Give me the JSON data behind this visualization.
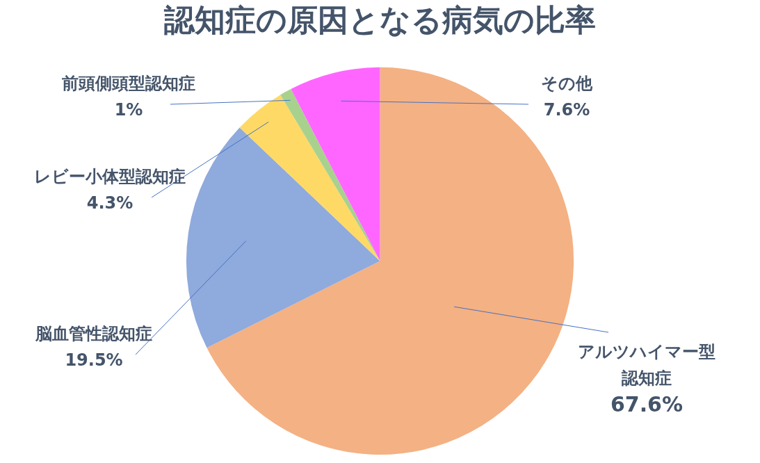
{
  "chart_data": {
    "type": "pie",
    "title": "認知症の原因となる病気の比率",
    "categories": [
      "アルツハイマー型認知症",
      "脳血管性認知症",
      "レビー小体型認知症",
      "前頭側頭型認知症",
      "その他"
    ],
    "values": [
      67.6,
      19.5,
      4.3,
      1,
      7.6
    ],
    "value_labels": [
      "67.6%",
      "19.5%",
      "4.3%",
      "1%",
      "7.6%"
    ],
    "colors": [
      "#f4b183",
      "#8faadc",
      "#ffd966",
      "#a9d18e",
      "#ff66ff"
    ],
    "legend": false
  }
}
